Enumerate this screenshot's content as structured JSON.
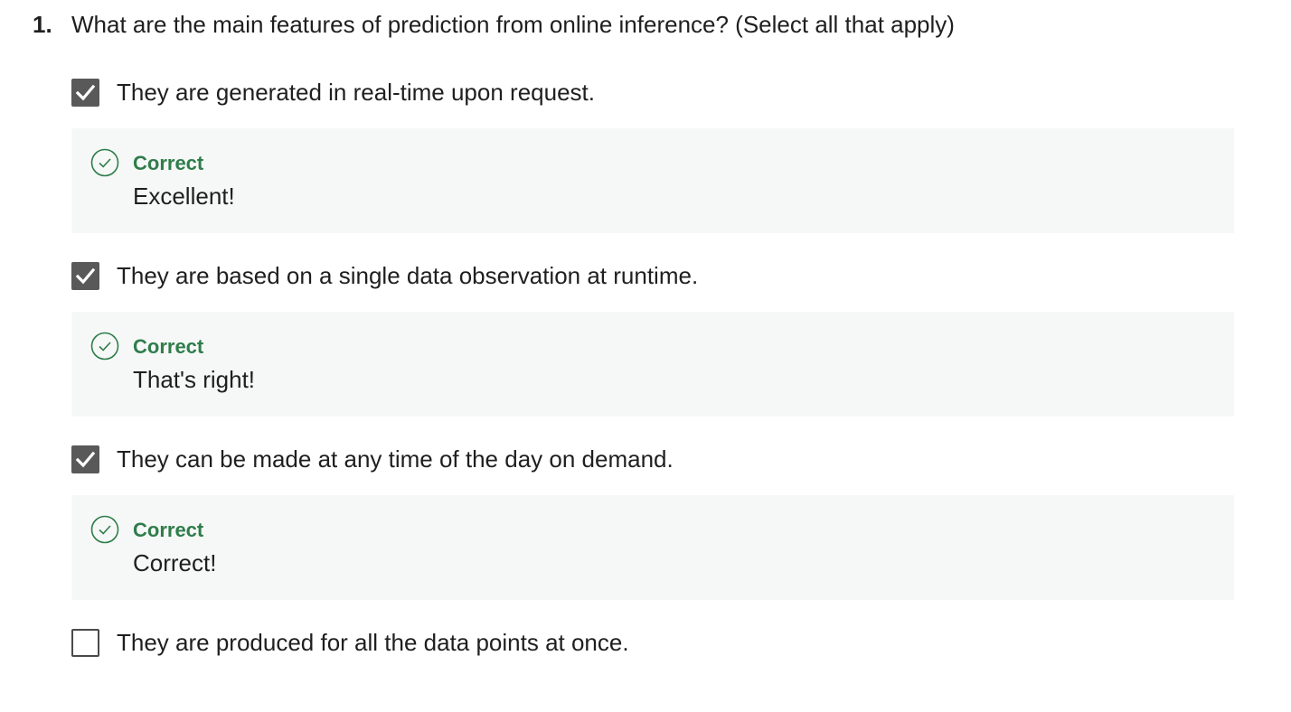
{
  "question": {
    "number": "1.",
    "text": "What are the main features of prediction from online inference? (Select all that apply)"
  },
  "options": [
    {
      "label": "They are generated in real-time upon request.",
      "checked": true,
      "feedback": {
        "status": "Correct",
        "message": "Excellent!"
      }
    },
    {
      "label": "They are based on a single data observation at runtime.",
      "checked": true,
      "feedback": {
        "status": "Correct",
        "message": "That's right!"
      }
    },
    {
      "label": "They can be made at any time of the day on demand.",
      "checked": true,
      "feedback": {
        "status": "Correct",
        "message": "Correct!"
      }
    },
    {
      "label": "They are produced for all the data points at once.",
      "checked": false
    }
  ],
  "colors": {
    "correct_green": "#2f7d4b",
    "checkbox_fill": "#595959",
    "feedback_background": "#f6f8f7"
  },
  "icons": {
    "checked": "checkmark-icon",
    "feedback": "check-circle-icon"
  }
}
